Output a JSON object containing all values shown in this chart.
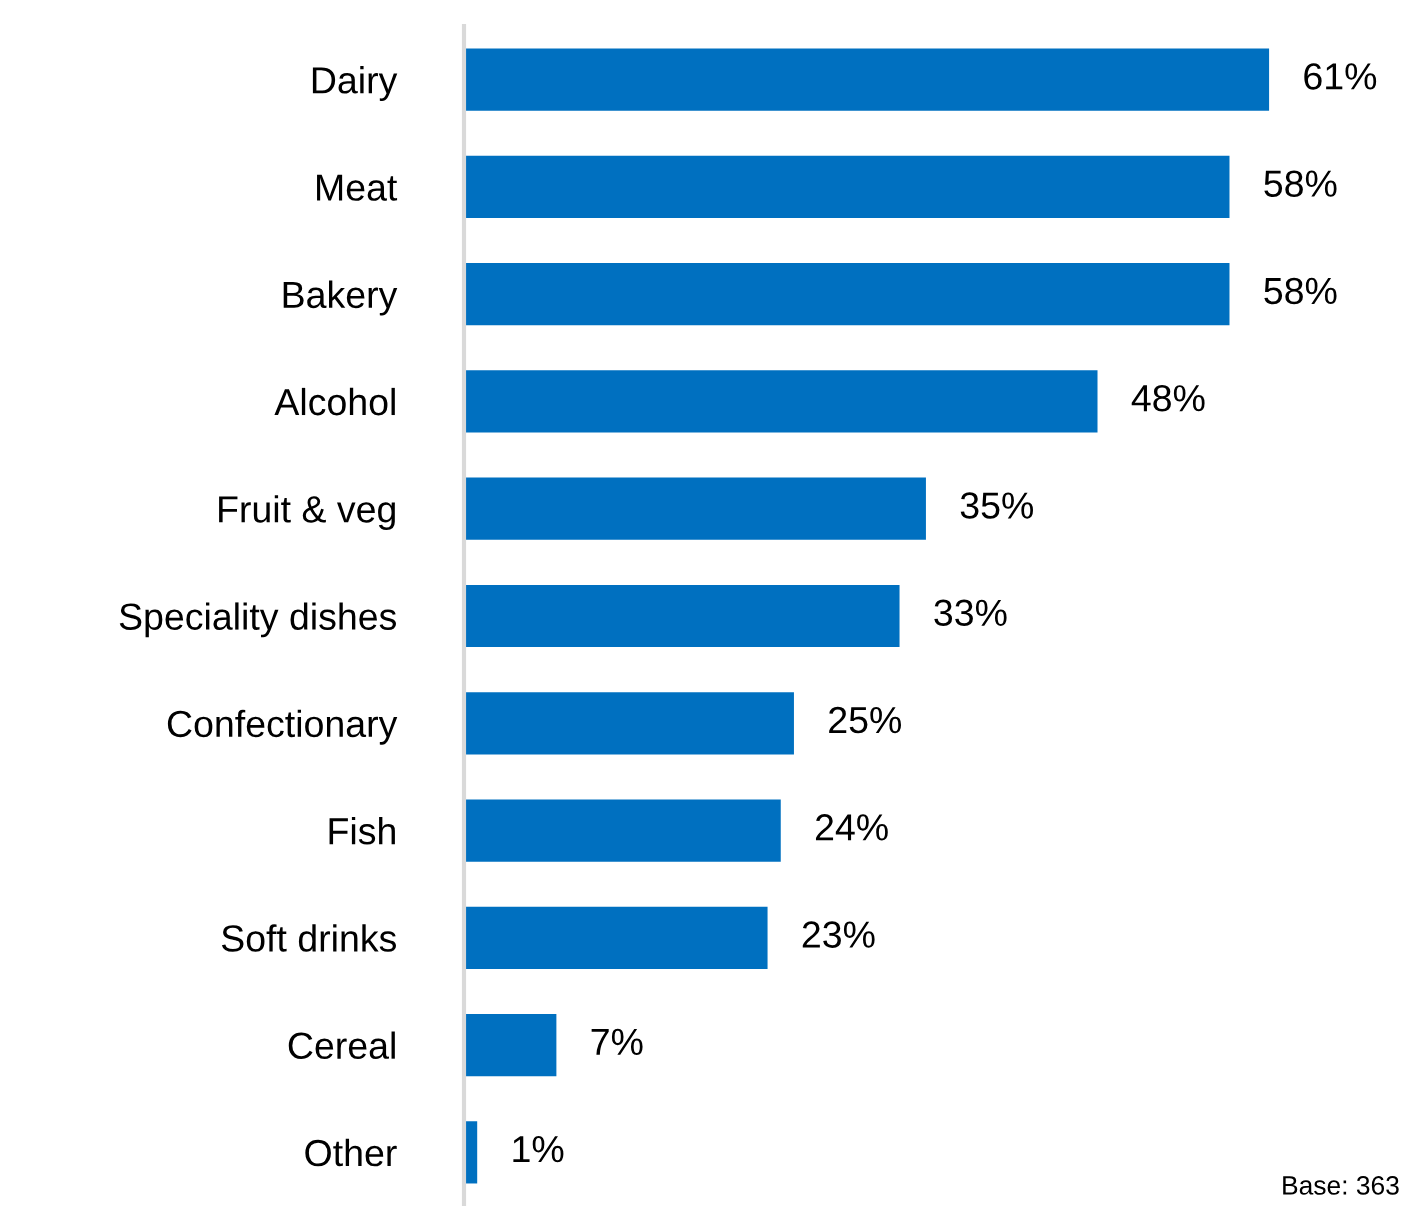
{
  "chart_data": {
    "type": "bar",
    "orientation": "horizontal",
    "categories": [
      "Dairy",
      "Meat",
      "Bakery",
      "Alcohol",
      "Fruit & veg",
      "Speciality dishes",
      "Confectionary",
      "Fish",
      "Soft drinks",
      "Cereal",
      "Other"
    ],
    "values": [
      61,
      58,
      58,
      48,
      35,
      33,
      25,
      24,
      23,
      7,
      1
    ],
    "value_labels": [
      "61%",
      "58%",
      "58%",
      "48%",
      "35%",
      "33%",
      "25%",
      "24%",
      "23%",
      "7%",
      "1%"
    ],
    "color": "#0070c0",
    "tick_labels": "y",
    "grid": false,
    "legend": false,
    "annotations": [
      "Base: 363"
    ]
  }
}
